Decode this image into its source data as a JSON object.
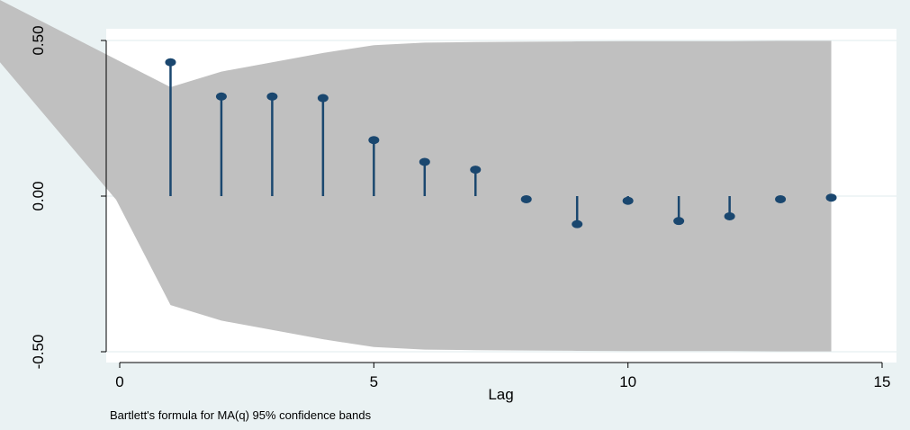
{
  "chart_data": {
    "type": "scatter",
    "subtype": "stem (autocorrelation with confidence band)",
    "xlabel": "Lag",
    "ylabel": "",
    "note": "Bartlett's formula for MA(q) 95% confidence bands",
    "xlim": [
      -0.2,
      15.2
    ],
    "ylim": [
      -0.53,
      0.5
    ],
    "xticks": [
      0,
      5,
      10,
      15
    ],
    "xtick_labels": [
      "0",
      "5",
      "10",
      "15"
    ],
    "yticks": [
      -0.5,
      0,
      0.5
    ],
    "ytick_labels": [
      "-0.50",
      "0.00",
      "0.50"
    ],
    "grid": "horizontal",
    "series": [
      {
        "x": [
          1,
          2,
          3,
          4,
          5,
          6,
          7,
          8,
          9,
          10,
          11,
          12,
          13,
          14
        ],
        "values": [
          0.43,
          0.32,
          0.32,
          0.315,
          0.18,
          0.11,
          0.085,
          -0.01,
          -0.09,
          -0.015,
          -0.08,
          -0.065,
          -0.01,
          -0.005
        ]
      }
    ],
    "confidence_band": {
      "x": [
        1,
        2,
        3,
        4,
        5,
        6,
        7,
        8,
        9,
        10,
        11,
        12,
        13,
        14
      ],
      "upper": [
        0.35,
        0.4,
        0.43,
        0.46,
        0.485,
        0.493,
        0.495,
        0.496,
        0.497,
        0.498,
        0.498,
        0.498,
        0.499,
        0.499
      ],
      "lower": [
        -0.35,
        -0.4,
        -0.43,
        -0.46,
        -0.485,
        -0.493,
        -0.495,
        -0.496,
        -0.497,
        -0.498,
        -0.498,
        -0.498,
        -0.499,
        -0.499
      ],
      "outside_left": {
        "upper_at_x_minus_0_3": 0.66,
        "lower_at_x_minus_0_3": 0.0
      }
    },
    "colors": {
      "marker": "#1a476f",
      "band": "#c0c0c0",
      "plot_background": "#ffffff",
      "frame_background": "#eaf2f3",
      "grid": "#eaf2f3"
    }
  }
}
